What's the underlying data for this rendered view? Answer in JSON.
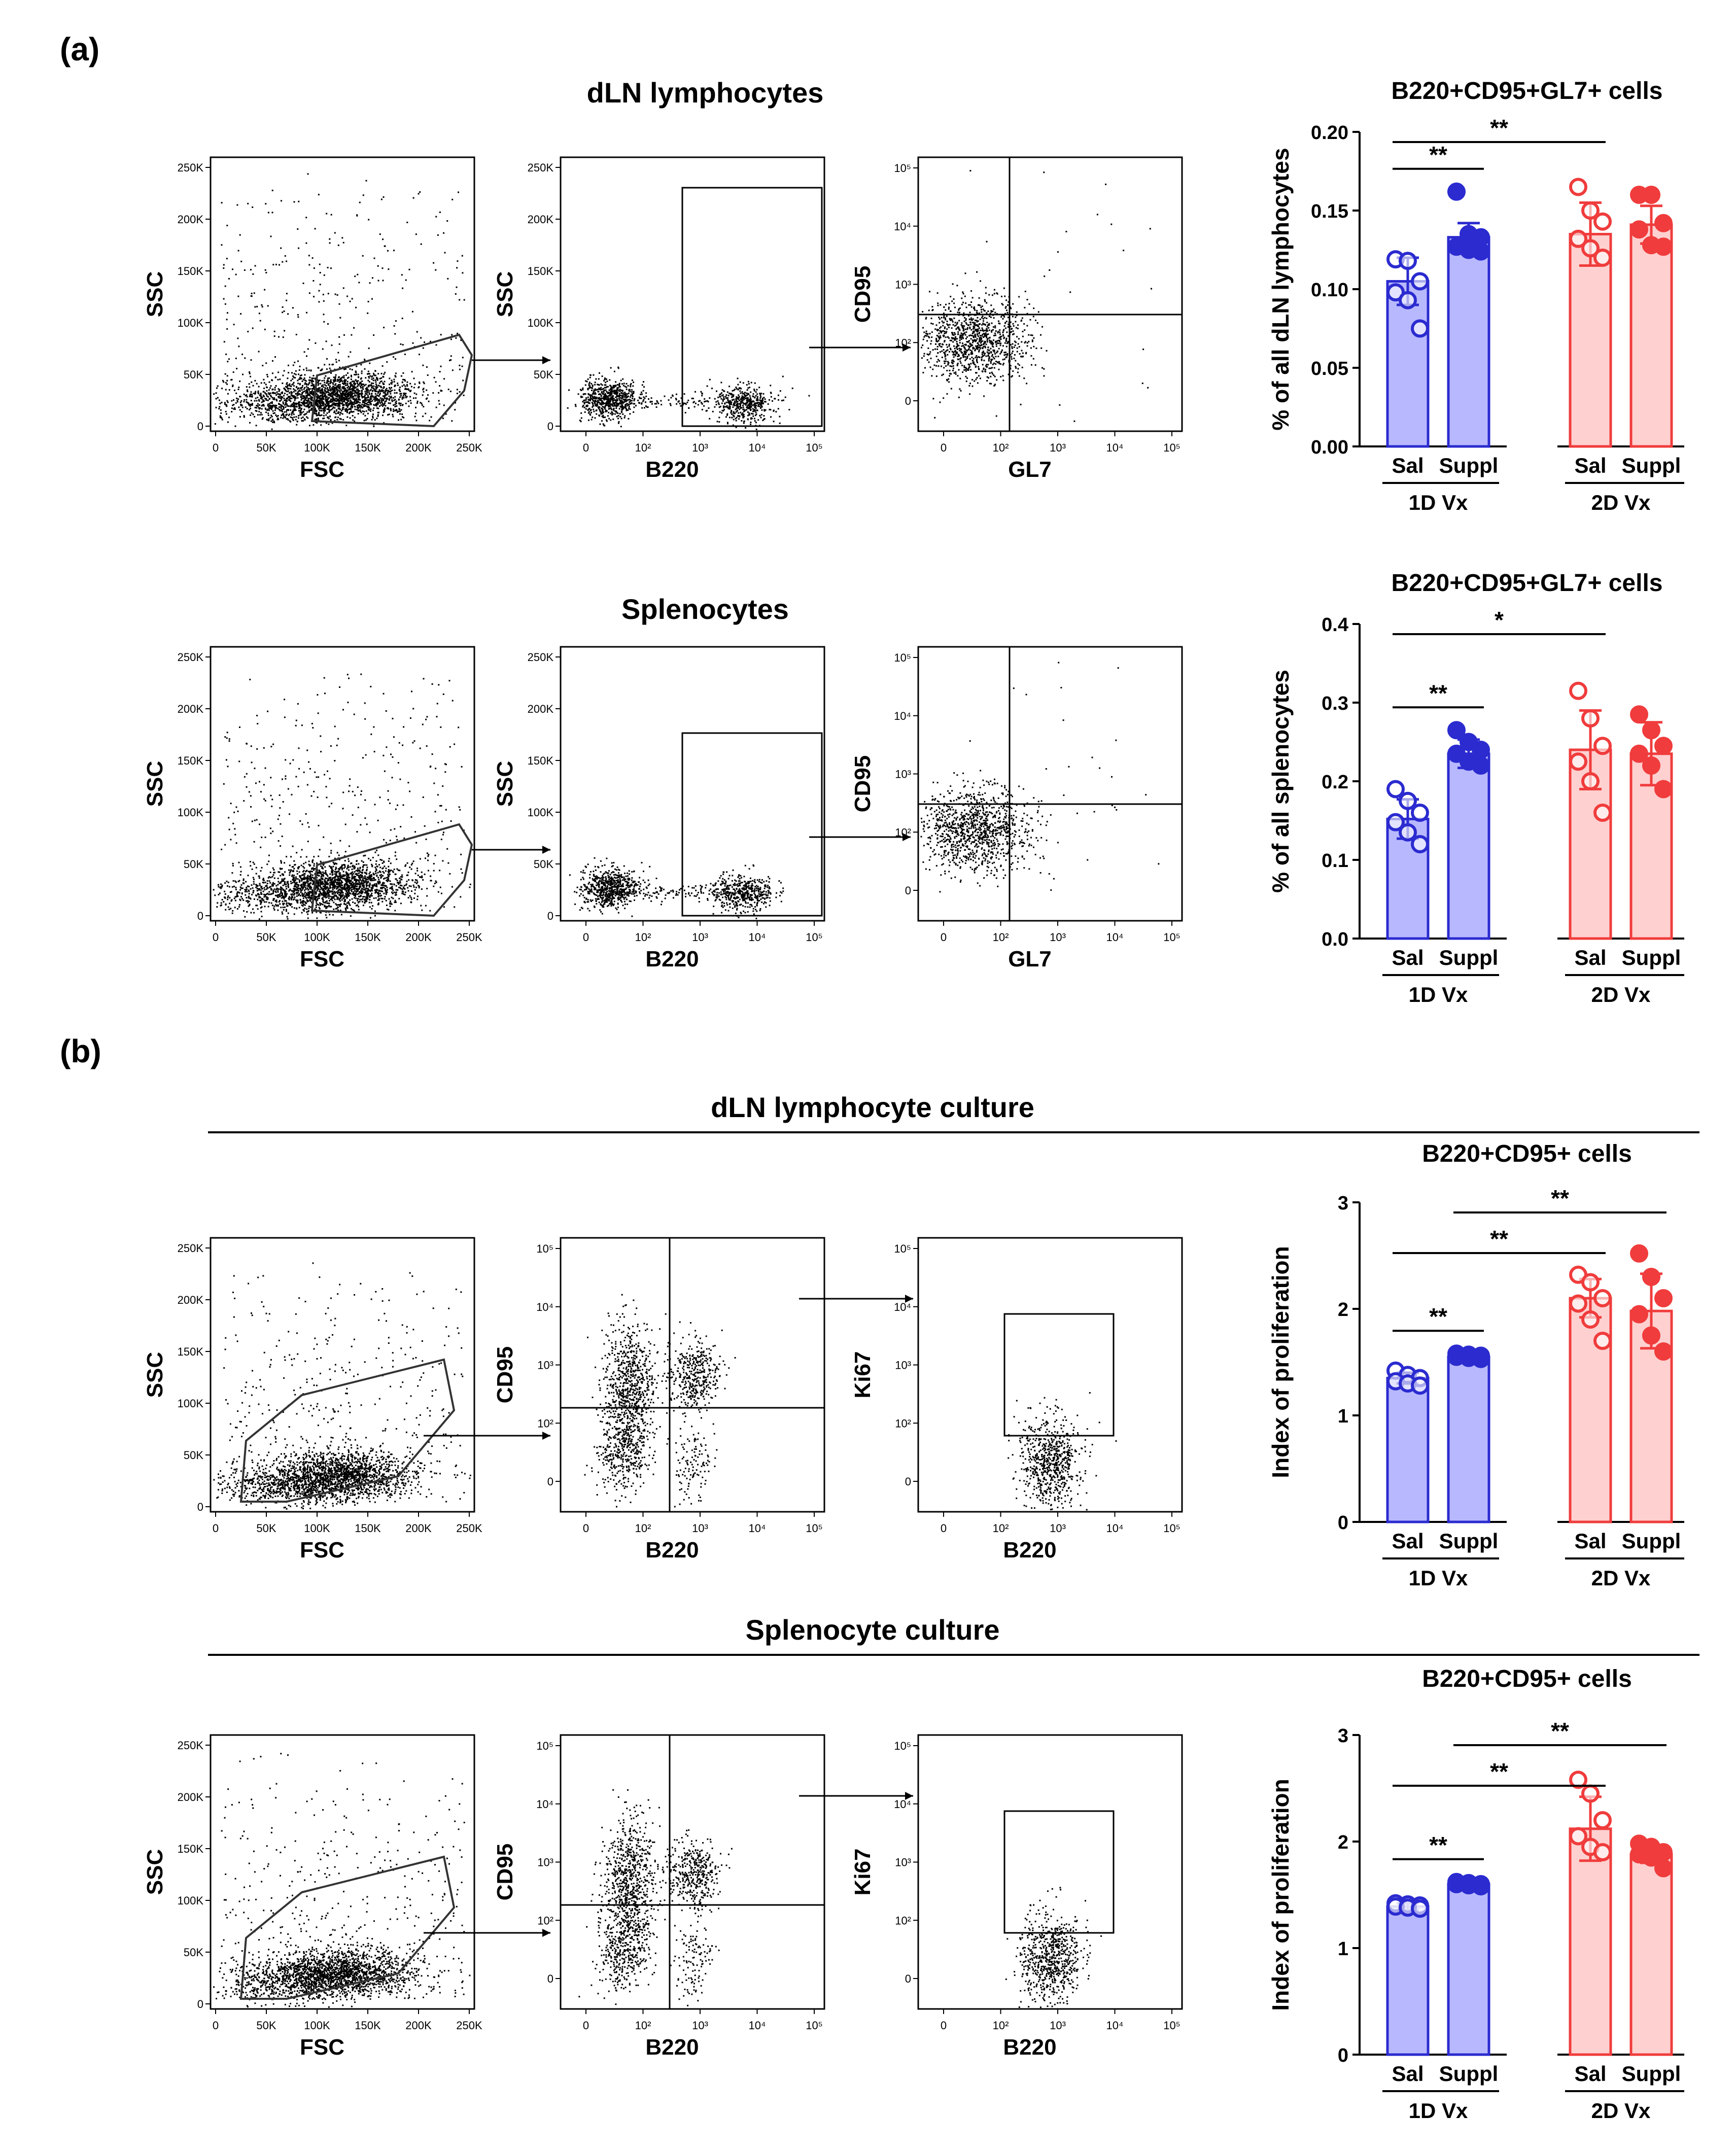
{
  "panel_a": {
    "label": "(a)",
    "rows": [
      {
        "title": "dLN lymphocytes",
        "plots": [
          {
            "kind": "scatter-gate",
            "xlabel": "FSC",
            "ylabel": "SSC",
            "xticks": [
              "0",
              "50K",
              "100K",
              "150K",
              "200K",
              "250K"
            ],
            "yticks": [
              "0",
              "50K",
              "100K",
              "150K",
              "200K",
              "250K"
            ]
          },
          {
            "kind": "scatter-rect",
            "xlabel": "B220",
            "ylabel": "SSC",
            "xticks": [
              "0",
              "10²",
              "10³",
              "10⁴",
              "10⁵"
            ],
            "yticks": [
              "0",
              "50K",
              "100K",
              "150K",
              "200K",
              "250K"
            ]
          },
          {
            "kind": "scatter-quad",
            "xlabel": "GL7",
            "ylabel": "CD95",
            "xticks": [
              "0",
              "10²",
              "10³",
              "10⁴",
              "10⁵"
            ],
            "yticks": [
              "0",
              "10²",
              "10³",
              "10⁴",
              "10⁵"
            ]
          }
        ]
      },
      {
        "title": "Splenocytes",
        "plots": [
          {
            "kind": "scatter-gate",
            "xlabel": "FSC",
            "ylabel": "SSC",
            "xticks": [
              "0",
              "50K",
              "100K",
              "150K",
              "200K",
              "250K"
            ],
            "yticks": [
              "0",
              "50K",
              "100K",
              "150K",
              "200K",
              "250K"
            ]
          },
          {
            "kind": "scatter-rect",
            "xlabel": "B220",
            "ylabel": "SSC",
            "xticks": [
              "0",
              "10²",
              "10³",
              "10⁴",
              "10⁵"
            ],
            "yticks": [
              "0",
              "50K",
              "100K",
              "150K",
              "200K",
              "250K"
            ]
          },
          {
            "kind": "scatter-quad",
            "xlabel": "GL7",
            "ylabel": "CD95",
            "xticks": [
              "0",
              "10²",
              "10³",
              "10⁴",
              "10⁵"
            ],
            "yticks": [
              "0",
              "10²",
              "10³",
              "10⁴",
              "10⁵"
            ]
          }
        ]
      }
    ]
  },
  "panel_b": {
    "label": "(b)",
    "rows": [
      {
        "title": "dLN lymphocyte culture",
        "plots": [
          {
            "kind": "scatter-gate",
            "xlabel": "FSC",
            "ylabel": "SSC",
            "xticks": [
              "0",
              "50K",
              "100K",
              "150K",
              "200K",
              "250K"
            ],
            "yticks": [
              "0",
              "50K",
              "100K",
              "150K",
              "200K",
              "250K"
            ]
          },
          {
            "kind": "scatter-quad2",
            "xlabel": "B220",
            "ylabel": "CD95",
            "xticks": [
              "0",
              "10²",
              "10³",
              "10⁴",
              "10⁵"
            ],
            "yticks": [
              "0",
              "10²",
              "10³",
              "10⁴",
              "10⁵"
            ]
          },
          {
            "kind": "scatter-ki67",
            "xlabel": "B220",
            "ylabel": "Ki67",
            "xticks": [
              "0",
              "10²",
              "10³",
              "10⁴",
              "10⁵"
            ],
            "yticks": [
              "0",
              "10²",
              "10³",
              "10⁴",
              "10⁵"
            ]
          }
        ]
      },
      {
        "title": "Splenocyte culture",
        "plots": [
          {
            "kind": "scatter-gate",
            "xlabel": "FSC",
            "ylabel": "SSC",
            "xticks": [
              "0",
              "50K",
              "100K",
              "150K",
              "200K",
              "250K"
            ],
            "yticks": [
              "0",
              "50K",
              "100K",
              "150K",
              "200K",
              "250K"
            ]
          },
          {
            "kind": "scatter-quad2",
            "xlabel": "B220",
            "ylabel": "CD95",
            "xticks": [
              "0",
              "10²",
              "10³",
              "10⁴",
              "10⁵"
            ],
            "yticks": [
              "0",
              "10²",
              "10³",
              "10⁴",
              "10⁵"
            ]
          },
          {
            "kind": "scatter-ki67",
            "xlabel": "B220",
            "ylabel": "Ki67",
            "xticks": [
              "0",
              "10²",
              "10³",
              "10⁴",
              "10⁵"
            ],
            "yticks": [
              "0",
              "10²",
              "10³",
              "10⁴",
              "10⁵"
            ]
          }
        ]
      }
    ]
  },
  "colors": {
    "blue": "#2b2bd0",
    "blue_fill": "#b8b8ff",
    "red": "#f03c3c",
    "red_fill": "#ffd0d0"
  },
  "chart_data": [
    {
      "type": "bar",
      "title": "B220+CD95+GL7+ cells",
      "ylabel": "% of all dLN lymphocytes",
      "ylim": [
        0,
        0.2
      ],
      "yticks": [
        "0.00",
        "0.05",
        "0.10",
        "0.15",
        "0.20"
      ],
      "categories": [
        "Sal",
        "Suppl",
        "Sal",
        "Suppl"
      ],
      "groups": [
        "1D Vx",
        "2D Vx"
      ],
      "values": [
        0.105,
        0.133,
        0.135,
        0.141
      ],
      "sd": [
        0.015,
        0.009,
        0.02,
        0.012
      ],
      "points": [
        [
          0.119,
          0.118,
          0.105,
          0.098,
          0.093,
          0.075
        ],
        [
          0.162,
          0.135,
          0.133,
          0.127,
          0.125,
          0.124
        ],
        [
          0.165,
          0.15,
          0.143,
          0.132,
          0.126,
          0.12
        ],
        [
          0.16,
          0.16,
          0.142,
          0.138,
          0.128,
          0.127
        ]
      ],
      "significance": [
        {
          "from": 0,
          "to": 1,
          "label": "**"
        },
        {
          "from": 0,
          "to": 2,
          "label": "**"
        }
      ]
    },
    {
      "type": "bar",
      "title": "B220+CD95+GL7+ cells",
      "ylabel": "% of all splenocytes",
      "ylim": [
        0,
        0.4
      ],
      "yticks": [
        "0.0",
        "0.1",
        "0.2",
        "0.3",
        "0.4"
      ],
      "categories": [
        "Sal",
        "Suppl",
        "Sal",
        "Suppl"
      ],
      "groups": [
        "1D Vx",
        "2D Vx"
      ],
      "values": [
        0.152,
        0.235,
        0.24,
        0.235
      ],
      "sd": [
        0.025,
        0.018,
        0.05,
        0.04
      ],
      "points": [
        [
          0.19,
          0.175,
          0.16,
          0.148,
          0.135,
          0.12
        ],
        [
          0.265,
          0.25,
          0.24,
          0.235,
          0.225,
          0.22
        ],
        [
          0.315,
          0.28,
          0.245,
          0.225,
          0.2,
          0.16
        ],
        [
          0.285,
          0.265,
          0.245,
          0.235,
          0.22,
          0.19
        ]
      ],
      "significance": [
        {
          "from": 0,
          "to": 1,
          "label": "**"
        },
        {
          "from": 0,
          "to": 2,
          "label": "*"
        }
      ]
    },
    {
      "type": "bar",
      "title": "B220+CD95+ cells",
      "ylabel": "Index of proliferation",
      "ylim": [
        0,
        3
      ],
      "yticks": [
        "0",
        "1",
        "2",
        "3"
      ],
      "categories": [
        "Sal",
        "Suppl",
        "Sal",
        "Suppl"
      ],
      "groups": [
        "1D Vx",
        "2D Vx"
      ],
      "values": [
        1.35,
        1.55,
        2.1,
        1.98
      ],
      "sd": [
        0.05,
        0.03,
        0.18,
        0.35
      ],
      "points": [
        [
          1.42,
          1.38,
          1.35,
          1.32,
          1.3,
          1.28
        ],
        [
          1.58,
          1.57,
          1.56,
          1.55,
          1.54,
          1.53
        ],
        [
          2.32,
          2.25,
          2.1,
          2.05,
          1.9,
          1.7
        ],
        [
          2.52,
          2.3,
          2.1,
          1.95,
          1.75,
          1.6
        ]
      ],
      "significance": [
        {
          "from": 0,
          "to": 1,
          "label": "**"
        },
        {
          "from": 0,
          "to": 2,
          "label": "**"
        },
        {
          "from": 1,
          "to": 3,
          "label": "**"
        }
      ]
    },
    {
      "type": "bar",
      "title": "B220+CD95+ cells",
      "ylabel": "Index of proliferation",
      "ylim": [
        0,
        3
      ],
      "yticks": [
        "0",
        "1",
        "2",
        "3"
      ],
      "categories": [
        "Sal",
        "Suppl",
        "Sal",
        "Suppl"
      ],
      "groups": [
        "1D Vx",
        "2D Vx"
      ],
      "values": [
        1.39,
        1.6,
        2.12,
        1.88
      ],
      "sd": [
        0.03,
        0.02,
        0.3,
        0.08
      ],
      "points": [
        [
          1.42,
          1.41,
          1.4,
          1.39,
          1.38,
          1.37
        ],
        [
          1.62,
          1.61,
          1.6,
          1.6,
          1.59,
          1.58
        ],
        [
          2.58,
          2.45,
          2.2,
          2.05,
          1.95,
          1.9
        ],
        [
          1.98,
          1.95,
          1.9,
          1.88,
          1.85,
          1.75
        ]
      ],
      "significance": [
        {
          "from": 0,
          "to": 1,
          "label": "**"
        },
        {
          "from": 0,
          "to": 2,
          "label": "**"
        },
        {
          "from": 1,
          "to": 3,
          "label": "**"
        }
      ]
    }
  ]
}
